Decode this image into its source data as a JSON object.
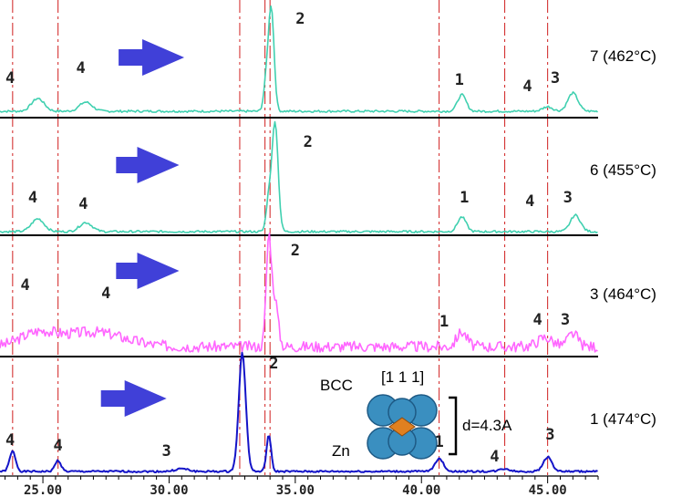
{
  "chart_data": {
    "type": "line",
    "xlim": [
      23.3,
      47.0
    ],
    "x_ticks": [
      25,
      30,
      35,
      40,
      45
    ],
    "x_tick_labels": [
      "25.00",
      "30.00",
      "35.00",
      "40.00",
      "45.00"
    ],
    "reference_lines": [
      23.8,
      25.6,
      32.8,
      33.8,
      34.0,
      40.7,
      43.3,
      45.0
    ],
    "panels": [
      {
        "label": "7 (462°C)",
        "color": "#40d0b0",
        "baseline": 122,
        "noise": 1.2,
        "seed": 7,
        "peaks": [
          [
            24.8,
            14,
            0.25
          ],
          [
            26.7,
            10,
            0.25
          ],
          [
            34.05,
            112,
            0.11
          ],
          [
            33.85,
            30,
            0.1
          ],
          [
            41.6,
            18,
            0.17
          ],
          [
            45.0,
            5,
            0.2
          ],
          [
            46.0,
            20,
            0.2
          ]
        ],
        "peak_labels": [
          {
            "x": 23.7,
            "y": 91,
            "text": "4"
          },
          {
            "x": 26.5,
            "y": 80,
            "text": "4"
          },
          {
            "x": 35.2,
            "y": 26,
            "text": "2"
          },
          {
            "x": 41.5,
            "y": 93,
            "text": "1"
          },
          {
            "x": 44.2,
            "y": 100,
            "text": "4"
          },
          {
            "x": 45.3,
            "y": 91,
            "text": "3"
          }
        ],
        "arrow": {
          "x_start": 28.0,
          "x_end": 30.6,
          "y": 63
        }
      },
      {
        "label": "6 (455°C)",
        "color": "#40d0b0",
        "baseline": 254,
        "noise": 1.2,
        "seed": 6,
        "peaks": [
          [
            24.8,
            14,
            0.25
          ],
          [
            26.7,
            10,
            0.25
          ],
          [
            34.2,
            120,
            0.12
          ],
          [
            33.95,
            35,
            0.1
          ],
          [
            41.6,
            16,
            0.17
          ],
          [
            46.1,
            18,
            0.2
          ]
        ],
        "peak_labels": [
          {
            "x": 24.6,
            "y": 222,
            "text": "4"
          },
          {
            "x": 26.6,
            "y": 229,
            "text": "4"
          },
          {
            "x": 35.5,
            "y": 161,
            "text": "2"
          },
          {
            "x": 41.7,
            "y": 222,
            "text": "1"
          },
          {
            "x": 44.3,
            "y": 226,
            "text": "4"
          },
          {
            "x": 45.8,
            "y": 222,
            "text": "3"
          }
        ],
        "arrow": {
          "x_start": 27.9,
          "x_end": 30.4,
          "y": 181
        }
      },
      {
        "label": "3 (464°C)",
        "color": "#ff66ff",
        "baseline": 380,
        "noise": 6,
        "seed": 3,
        "peaks": [
          [
            24.8,
            14,
            0.7
          ],
          [
            27.0,
            16,
            1.2
          ],
          [
            33.95,
            118,
            0.1
          ],
          [
            34.2,
            50,
            0.12
          ],
          [
            41.6,
            16,
            0.2
          ],
          [
            44.9,
            10,
            0.3
          ],
          [
            46.0,
            14,
            0.2
          ]
        ],
        "peak_labels": [
          {
            "x": 24.3,
            "y": 318,
            "text": "4"
          },
          {
            "x": 27.5,
            "y": 327,
            "text": "4"
          },
          {
            "x": 35.0,
            "y": 280,
            "text": "2"
          },
          {
            "x": 40.9,
            "y": 358,
            "text": "1"
          },
          {
            "x": 44.6,
            "y": 356,
            "text": "4"
          },
          {
            "x": 45.7,
            "y": 356,
            "text": "3"
          }
        ],
        "arrow": {
          "x_start": 27.9,
          "x_end": 30.4,
          "y": 297
        }
      },
      {
        "label": "1 (474°C)",
        "color": "#1414c8",
        "baseline": 517,
        "noise": 1.0,
        "seed": 1,
        "peaks": [
          [
            23.8,
            22,
            0.12
          ],
          [
            25.6,
            12,
            0.12
          ],
          [
            30.5,
            3,
            0.25
          ],
          [
            32.9,
            130,
            0.14
          ],
          [
            33.95,
            40,
            0.09
          ],
          [
            40.7,
            14,
            0.17
          ],
          [
            43.3,
            3,
            0.2
          ],
          [
            45.0,
            16,
            0.17
          ]
        ],
        "peak_labels": [
          {
            "x": 23.7,
            "y": 488,
            "text": "4"
          },
          {
            "x": 25.6,
            "y": 494,
            "text": "4"
          },
          {
            "x": 29.9,
            "y": 500,
            "text": "3"
          },
          {
            "x": 34.15,
            "y": 404,
            "text": "2"
          },
          {
            "x": 40.7,
            "y": 490,
            "text": "1"
          },
          {
            "x": 42.9,
            "y": 506,
            "text": "4"
          },
          {
            "x": 45.1,
            "y": 482,
            "text": "3"
          }
        ],
        "arrow": {
          "x_start": 27.3,
          "x_end": 29.9,
          "y": 437
        }
      }
    ]
  },
  "inset": {
    "structure_label": "BCC",
    "direction_label": "[1 1 1]",
    "element_label": "Zn",
    "spacing_label": "d=4.3A"
  },
  "colors": {
    "reference_line": "#d02020",
    "separator": "#000000",
    "arrow": "#4040d8",
    "atom": "#3a8fc0",
    "center_atom": "#e08020"
  }
}
